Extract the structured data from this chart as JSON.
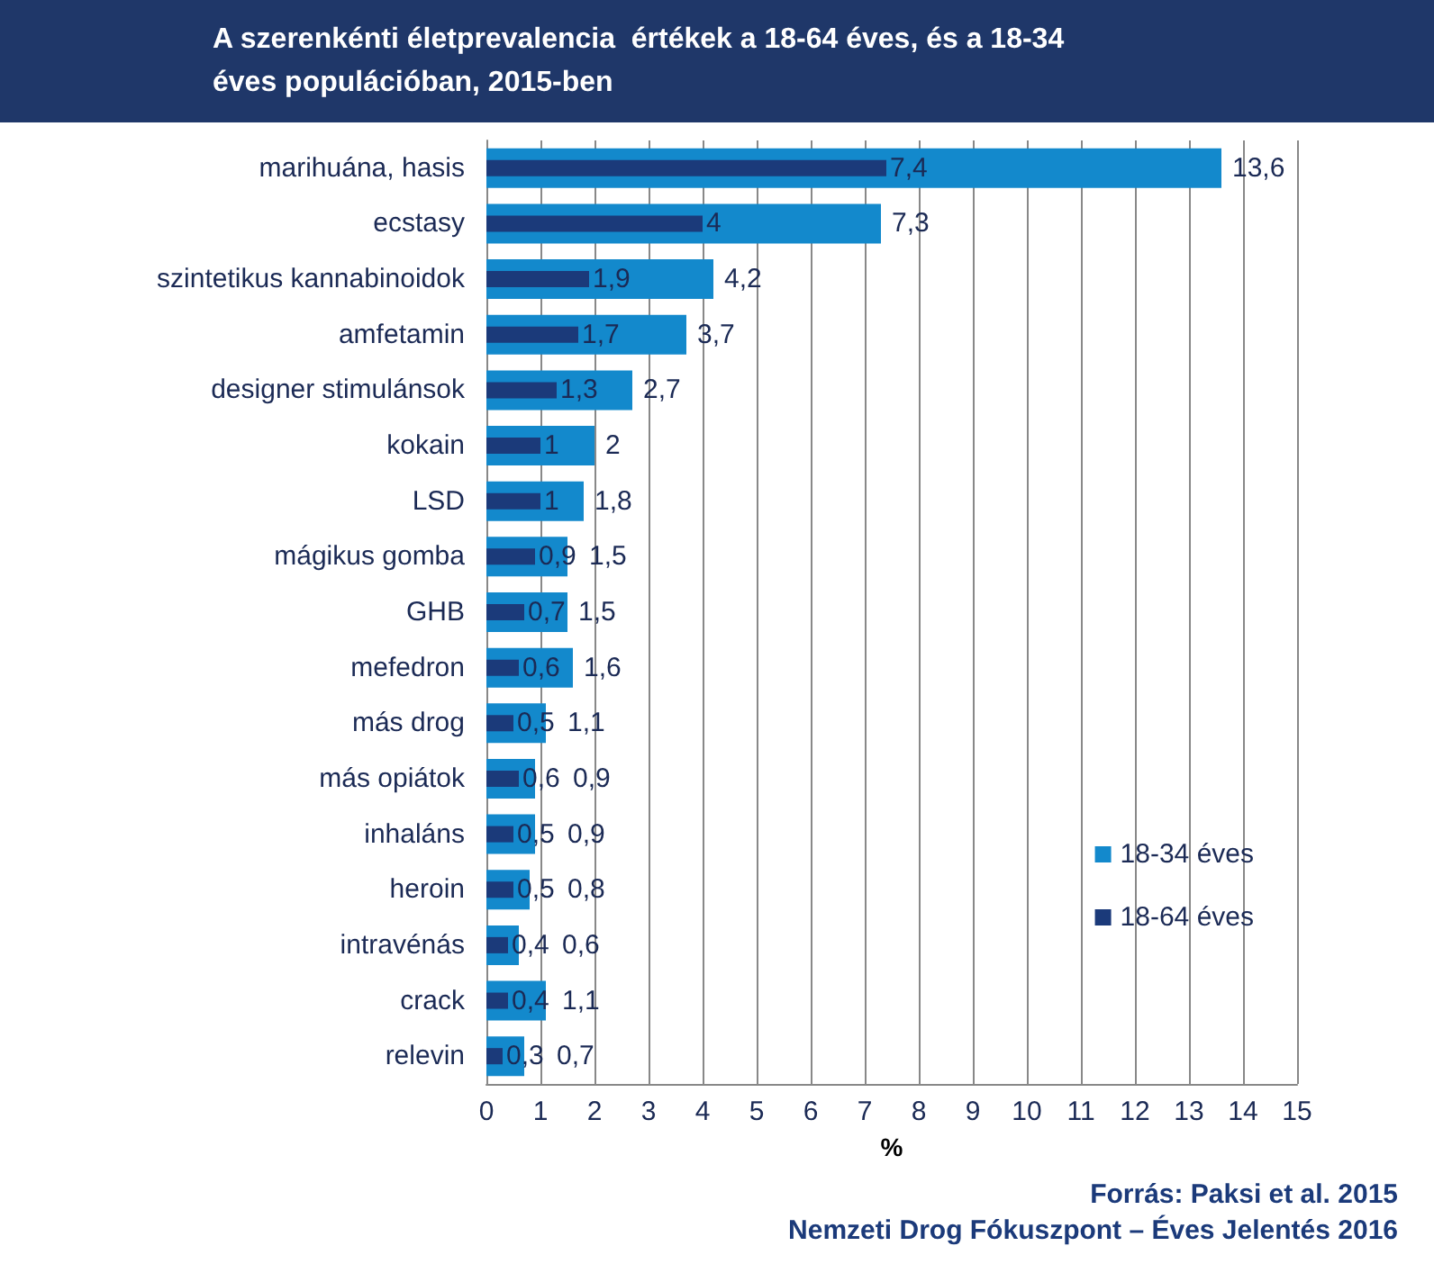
{
  "chart_data": {
    "type": "bar",
    "orientation": "horizontal",
    "title": "A szerenkénti életprevalencia  értékek a 18-64 éves, és a 18-34 éves populációban, 2015-ben",
    "xlabel": "%",
    "categories": [
      "marihuána, hasis",
      "ecstasy",
      "szintetikus kannabinoidok",
      "amfetamin",
      "designer stimulánsok",
      "kokain",
      "LSD",
      "mágikus gomba",
      "GHB",
      "mefedron",
      "más drog",
      "más opiátok",
      "inhaláns",
      "heroin",
      "intravénás",
      "crack",
      "relevin"
    ],
    "series": [
      {
        "name": "18-34 éves",
        "color": "#1389cc",
        "values": [
          13.6,
          7.3,
          4.2,
          3.7,
          2.7,
          2,
          1.8,
          1.5,
          1.5,
          1.6,
          1.1,
          0.9,
          0.9,
          0.8,
          0.6,
          1.1,
          0.7
        ],
        "value_labels": [
          "13,6",
          "7,3",
          "4,2",
          "3,7",
          "2,7",
          "2",
          "1,8",
          "1,5",
          "1,5",
          "1,6",
          "1,1",
          "0,9",
          "0,9",
          "0,8",
          "0,6",
          "1,1",
          "0,7"
        ]
      },
      {
        "name": "18-64 éves",
        "color": "#1b3a7a",
        "values": [
          7.4,
          4,
          1.9,
          1.7,
          1.3,
          1,
          1,
          0.9,
          0.7,
          0.6,
          0.5,
          0.6,
          0.5,
          0.5,
          0.4,
          0.4,
          0.3
        ],
        "value_labels": [
          "7,4",
          "4",
          "1,9",
          "1,7",
          "1,3",
          "1",
          "1",
          "0,9",
          "0,7",
          "0,6",
          "0,5",
          "0,6",
          "0,5",
          "0,5",
          "0,4",
          "0,4",
          "0,3"
        ]
      }
    ],
    "xlim": [
      0,
      15
    ],
    "xticks": [
      0,
      1,
      2,
      3,
      4,
      5,
      6,
      7,
      8,
      9,
      10,
      11,
      12,
      13,
      14,
      15
    ],
    "grid": "x",
    "legend": "bottom right",
    "annotations": [
      "Forrás: Paksi et al. 2015",
      "Nemzeti Drog Fókuszpont – Éves Jelentés 2016"
    ]
  }
}
